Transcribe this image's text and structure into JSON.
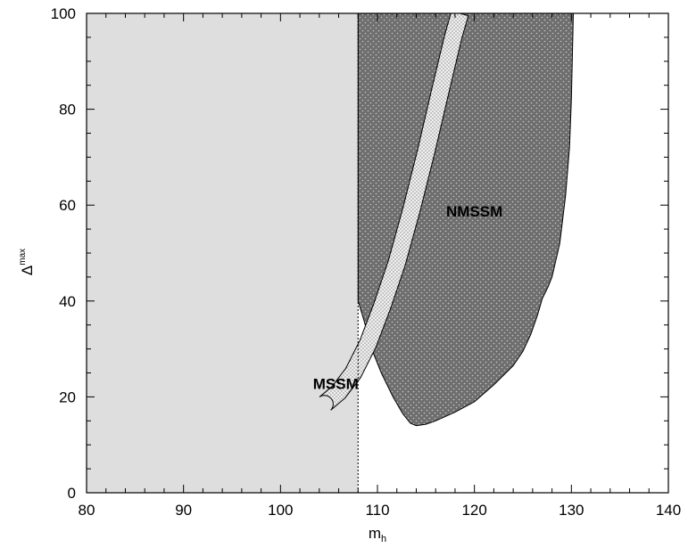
{
  "chart_data": {
    "type": "area",
    "xlabel": "m",
    "xlabel_sub": "h",
    "ylabel": "Δ",
    "ylabel_sup": "max",
    "xlim": [
      80,
      140
    ],
    "ylim": [
      0,
      100
    ],
    "xticks": [
      80,
      90,
      100,
      110,
      120,
      130,
      140
    ],
    "yticks": [
      0,
      20,
      40,
      60,
      80,
      100
    ],
    "grid": false,
    "excluded_region": {
      "x": [
        80,
        108
      ],
      "color": "#dedede"
    },
    "exclusion_line_x": 108,
    "regions": [
      {
        "name": "NMSSM",
        "label": "NMSSM",
        "label_at": [
          120,
          58.5
        ],
        "fill": "#6e6e6e",
        "boundary": [
          [
            108.0,
            100
          ],
          [
            108.0,
            40
          ],
          [
            108.6,
            36
          ],
          [
            109.4,
            30
          ],
          [
            110.4,
            25
          ],
          [
            111.6,
            20
          ],
          [
            112.6,
            16.5
          ],
          [
            113.4,
            14.5
          ],
          [
            114.0,
            14.0
          ],
          [
            115.0,
            14.3
          ],
          [
            116.0,
            15.0
          ],
          [
            118.0,
            16.8
          ],
          [
            120.0,
            19.0
          ],
          [
            122.0,
            22.5
          ],
          [
            124.0,
            26.5
          ],
          [
            125.0,
            29.5
          ],
          [
            125.8,
            33
          ],
          [
            126.5,
            37
          ],
          [
            127.0,
            40.5
          ],
          [
            127.6,
            43
          ],
          [
            128.0,
            45
          ],
          [
            128.8,
            52
          ],
          [
            129.4,
            62
          ],
          [
            129.8,
            72
          ],
          [
            130.0,
            82
          ],
          [
            130.2,
            100
          ]
        ]
      },
      {
        "name": "MSSM",
        "label": "MSSM",
        "label_at": [
          105.7,
          22.5
        ],
        "fill": "#f0f0f0",
        "centerline": [
          [
            104.6,
            18.6
          ],
          [
            106.0,
            21.0
          ],
          [
            107.5,
            25.0
          ],
          [
            109.0,
            31.0
          ],
          [
            110.5,
            39.0
          ],
          [
            112.0,
            48.0
          ],
          [
            113.5,
            59.0
          ],
          [
            115.0,
            71.0
          ],
          [
            116.5,
            84.0
          ],
          [
            117.8,
            95.0
          ],
          [
            118.5,
            100.0
          ]
        ],
        "band_width": 1.8
      }
    ]
  }
}
